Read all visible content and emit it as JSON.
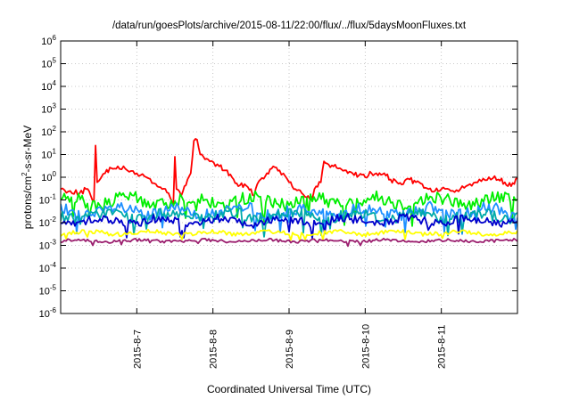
{
  "chart_data": {
    "type": "line",
    "title": "/data/run/goesPlots/archive/2015-08-11/22:00/flux/../flux/5daysMoonFluxes.txt",
    "xlabel": "Coordinated Universal Time (UTC)",
    "ylabel": {
      "base": "protons/cm",
      "sup": "2",
      "rest": "-s-sr-MeV"
    },
    "y_scale": "log",
    "ylim": [
      1e-06,
      1000000.0
    ],
    "y_ticks": [
      {
        "value": 1e-06,
        "base": "10",
        "exp": "-6"
      },
      {
        "value": 1e-05,
        "base": "10",
        "exp": "-5"
      },
      {
        "value": 0.0001,
        "base": "10",
        "exp": "-4"
      },
      {
        "value": 0.001,
        "base": "10",
        "exp": "-3"
      },
      {
        "value": 0.01,
        "base": "10",
        "exp": "-2"
      },
      {
        "value": 0.1,
        "base": "10",
        "exp": "-1"
      },
      {
        "value": 1,
        "base": "10",
        "exp": "0"
      },
      {
        "value": 10,
        "base": "10",
        "exp": "1"
      },
      {
        "value": 100,
        "base": "10",
        "exp": "2"
      },
      {
        "value": 1000,
        "base": "10",
        "exp": "3"
      },
      {
        "value": 10000,
        "base": "10",
        "exp": "4"
      },
      {
        "value": 100000,
        "base": "10",
        "exp": "5"
      },
      {
        "value": 1000000,
        "base": "10",
        "exp": "6"
      }
    ],
    "xlim": [
      "2015-08-06T00:00",
      "2015-08-12T00:00"
    ],
    "x_ticks": [
      {
        "value": "2015-08-07T00:00",
        "label": "2015-8-7"
      },
      {
        "value": "2015-08-08T00:00",
        "label": "2015-8-8"
      },
      {
        "value": "2015-08-09T00:00",
        "label": "2015-8-9"
      },
      {
        "value": "2015-08-10T00:00",
        "label": "2015-8-10"
      },
      {
        "value": "2015-08-11T00:00",
        "label": "2015-8-11"
      }
    ],
    "grid": true,
    "legend": "none",
    "series": [
      {
        "color": "#ff0000",
        "points": [
          [
            "2015-08-06T00:00",
            0.3
          ],
          [
            "2015-08-06T03:00",
            0.25
          ],
          [
            "2015-08-06T06:00",
            0.2
          ],
          [
            "2015-08-06T08:00",
            0.3
          ],
          [
            "2015-08-06T09:30",
            0.15
          ],
          [
            "2015-08-06T10:30",
            0.1
          ],
          [
            "2015-08-06T11:00",
            25
          ],
          [
            "2015-08-06T11:30",
            0.6
          ],
          [
            "2015-08-06T14:00",
            1.5
          ],
          [
            "2015-08-06T16:00",
            2.5
          ],
          [
            "2015-08-06T18:00",
            3
          ],
          [
            "2015-08-06T21:00",
            2
          ],
          [
            "2015-08-07T00:00",
            1.5
          ],
          [
            "2015-08-07T03:00",
            1.0
          ],
          [
            "2015-08-07T06:00",
            0.5
          ],
          [
            "2015-08-07T08:00",
            0.3
          ],
          [
            "2015-08-07T10:00",
            0.2
          ],
          [
            "2015-08-07T11:30",
            0.05
          ],
          [
            "2015-08-07T12:00",
            8
          ],
          [
            "2015-08-07T12:30",
            0.3
          ],
          [
            "2015-08-07T14:00",
            0.15
          ],
          [
            "2015-08-07T15:00",
            0.4
          ],
          [
            "2015-08-07T16:00",
            0.8
          ],
          [
            "2015-08-07T17:00",
            1.5
          ],
          [
            "2015-08-07T18:00",
            40
          ],
          [
            "2015-08-07T19:00",
            45
          ],
          [
            "2015-08-07T20:00",
            10
          ],
          [
            "2015-08-07T21:00",
            8
          ],
          [
            "2015-08-07T23:00",
            5
          ],
          [
            "2015-08-08T02:00",
            3
          ],
          [
            "2015-08-08T04:00",
            2
          ],
          [
            "2015-08-08T06:00",
            1
          ],
          [
            "2015-08-08T08:00",
            0.4
          ],
          [
            "2015-08-08T10:00",
            0.5
          ],
          [
            "2015-08-08T12:00",
            0.3
          ],
          [
            "2015-08-08T13:00",
            0.15
          ],
          [
            "2015-08-08T14:00",
            0.5
          ],
          [
            "2015-08-08T15:00",
            0.8
          ],
          [
            "2015-08-08T17:00",
            1.5
          ],
          [
            "2015-08-08T19:00",
            3
          ],
          [
            "2015-08-08T21:00",
            2
          ],
          [
            "2015-08-09T00:00",
            0.6
          ],
          [
            "2015-08-09T02:00",
            0.3
          ],
          [
            "2015-08-09T04:00",
            0.2
          ],
          [
            "2015-08-09T06:00",
            0.15
          ],
          [
            "2015-08-09T07:00",
            0.1
          ],
          [
            "2015-08-09T08:00",
            0.3
          ],
          [
            "2015-08-09T10:00",
            0.6
          ],
          [
            "2015-08-09T11:00",
            5
          ],
          [
            "2015-08-09T12:00",
            4
          ],
          [
            "2015-08-09T14:00",
            3
          ],
          [
            "2015-08-09T16:00",
            2.5
          ],
          [
            "2015-08-09T18:00",
            2
          ],
          [
            "2015-08-09T20:00",
            1.5
          ],
          [
            "2015-08-09T22:00",
            1.2
          ],
          [
            "2015-08-10T00:00",
            1
          ],
          [
            "2015-08-10T02:00",
            1.5
          ],
          [
            "2015-08-10T04:00",
            1.2
          ],
          [
            "2015-08-10T06:00",
            1.5
          ],
          [
            "2015-08-10T08:00",
            0.8
          ],
          [
            "2015-08-10T10:00",
            0.6
          ],
          [
            "2015-08-10T12:00",
            0.5
          ],
          [
            "2015-08-10T14:00",
            0.8
          ],
          [
            "2015-08-10T16:00",
            0.6
          ],
          [
            "2015-08-10T18:00",
            0.5
          ],
          [
            "2015-08-10T20:00",
            0.3
          ],
          [
            "2015-08-10T22:00",
            0.25
          ],
          [
            "2015-08-11T00:00",
            0.3
          ],
          [
            "2015-08-11T03:00",
            0.25
          ],
          [
            "2015-08-11T06:00",
            0.3
          ],
          [
            "2015-08-11T09:00",
            0.5
          ],
          [
            "2015-08-11T12:00",
            0.8
          ],
          [
            "2015-08-11T15:00",
            1
          ],
          [
            "2015-08-11T18:00",
            0.8
          ],
          [
            "2015-08-11T20:00",
            0.6
          ],
          [
            "2015-08-11T22:00",
            0.4
          ],
          [
            "2015-08-11T23:00",
            0.5
          ],
          [
            "2015-08-12T00:00",
            0.9
          ]
        ]
      },
      {
        "color": "#00ee00",
        "level": 0.09,
        "spread": 0.35
      },
      {
        "color": "#1e90ff",
        "level": 0.03,
        "spread": 0.35
      },
      {
        "color": "#00aaaa",
        "level": 0.02,
        "spread": 0.3
      },
      {
        "color": "#0000cc",
        "level": 0.012,
        "spread": 0.25
      },
      {
        "color": "#ffff00",
        "level": 0.0035,
        "spread": 0.12
      },
      {
        "color": "#9b1e6e",
        "level": 0.0016,
        "spread": 0.08
      }
    ]
  }
}
